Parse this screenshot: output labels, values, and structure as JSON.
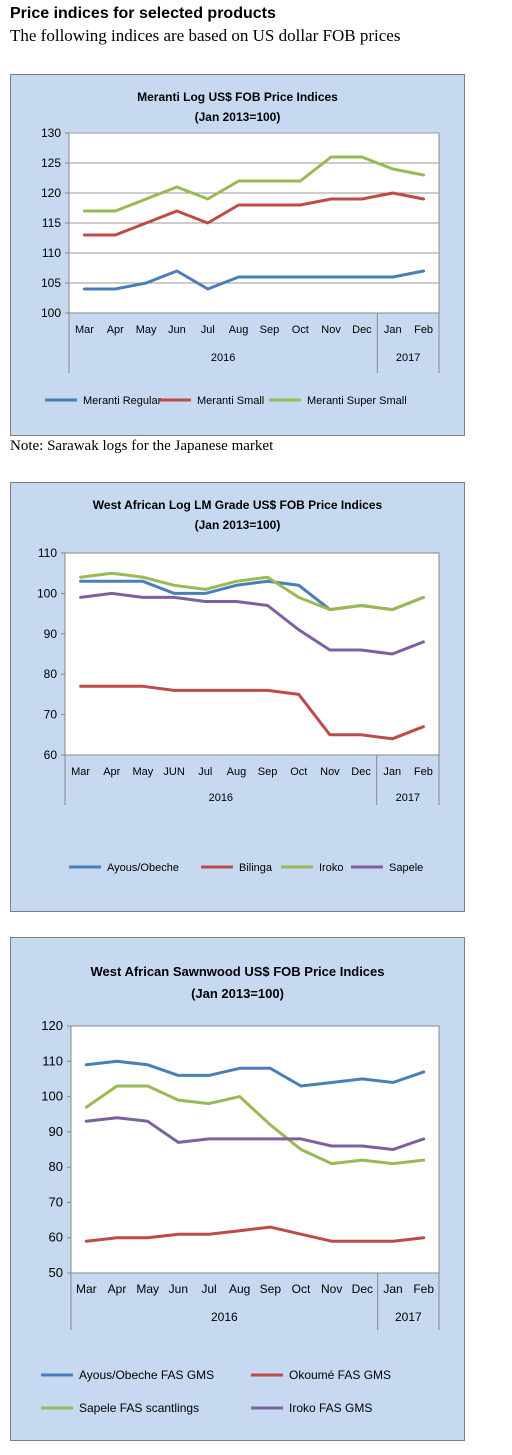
{
  "header": {
    "title": "Price indices for selected products",
    "subtitle": "The following indices are based on US dollar FOB prices"
  },
  "note": "Note: Sarawak logs for the Japanese market",
  "chart_data": [
    {
      "type": "line",
      "title_lines": [
        "Meranti Log US$ FOB Price Indices",
        "(Jan 2013=100)"
      ],
      "categories": [
        "Mar",
        "Apr",
        "May",
        "Jun",
        "Jul",
        "Aug",
        "Sep",
        "Oct",
        "Nov",
        "Dec",
        "Jan",
        "Feb"
      ],
      "groups": [
        {
          "label": "2016",
          "from": 0,
          "to": 9
        },
        {
          "label": "2017",
          "from": 10,
          "to": 11
        }
      ],
      "ylim": [
        100,
        130
      ],
      "yticks": [
        100,
        105,
        110,
        115,
        120,
        125,
        130
      ],
      "grid": true,
      "legend": "bottom",
      "series": [
        {
          "name": "Meranti Regular",
          "color": "#4a7ebb",
          "values": [
            104,
            104,
            105,
            107,
            104,
            106,
            106,
            106,
            106,
            106,
            106,
            107
          ]
        },
        {
          "name": "Meranti Small",
          "color": "#be4b48",
          "values": [
            113,
            113,
            115,
            117,
            115,
            118,
            118,
            118,
            119,
            119,
            120,
            119
          ]
        },
        {
          "name": "Meranti Super Small",
          "color": "#98b954",
          "values": [
            117,
            117,
            119,
            121,
            119,
            122,
            122,
            122,
            126,
            126,
            124,
            123
          ]
        }
      ]
    },
    {
      "type": "line",
      "title_lines": [
        "West African Log LM Grade US$ FOB Price Indices",
        "(Jan 2013=100)"
      ],
      "categories": [
        "Mar",
        "Apr",
        "May",
        "JUN",
        "Jul",
        "Aug",
        "Sep",
        "Oct",
        "Nov",
        "Dec",
        "Jan",
        "Feb"
      ],
      "groups": [
        {
          "label": "2016",
          "from": 0,
          "to": 9
        },
        {
          "label": "2017",
          "from": 10,
          "to": 11
        }
      ],
      "ylim": [
        60,
        110
      ],
      "yticks": [
        60,
        70,
        80,
        90,
        100,
        110
      ],
      "grid": false,
      "legend": "bottom",
      "series": [
        {
          "name": "Ayous/Obeche",
          "color": "#4a7ebb",
          "values": [
            103,
            103,
            103,
            100,
            100,
            102,
            103,
            102,
            96,
            97,
            96,
            99
          ]
        },
        {
          "name": "Bilinga",
          "color": "#be4b48",
          "values": [
            77,
            77,
            77,
            76,
            76,
            76,
            76,
            75,
            65,
            65,
            64,
            67
          ]
        },
        {
          "name": "Iroko",
          "color": "#98b954",
          "values": [
            104,
            105,
            104,
            102,
            101,
            103,
            104,
            99,
            96,
            97,
            96,
            99
          ]
        },
        {
          "name": "Sapele",
          "color": "#7d60a0",
          "values": [
            99,
            100,
            99,
            99,
            98,
            98,
            97,
            91,
            86,
            86,
            85,
            88
          ]
        }
      ]
    },
    {
      "type": "line",
      "title_lines": [
        "West African Sawnwood US$ FOB Price Indices",
        "(Jan 2013=100)"
      ],
      "categories": [
        "Mar",
        "Apr",
        "May",
        "Jun",
        "Jul",
        "Aug",
        "Sep",
        "Oct",
        "Nov",
        "Dec",
        "Jan",
        "Feb"
      ],
      "groups": [
        {
          "label": "2016",
          "from": 0,
          "to": 9
        },
        {
          "label": "2017",
          "from": 10,
          "to": 11
        }
      ],
      "ylim": [
        50,
        120
      ],
      "yticks": [
        50,
        60,
        70,
        80,
        90,
        100,
        110,
        120
      ],
      "grid": false,
      "legend": "bottom",
      "series": [
        {
          "name": "Ayous/Obeche  FAS GMS",
          "color": "#4a7ebb",
          "values": [
            109,
            110,
            109,
            106,
            106,
            108,
            108,
            103,
            104,
            105,
            104,
            107
          ]
        },
        {
          "name": "Okoumé  FAS GMS",
          "color": "#be4b48",
          "values": [
            59,
            60,
            60,
            61,
            61,
            62,
            63,
            61,
            59,
            59,
            59,
            60
          ]
        },
        {
          "name": "Sapele FAS scantlings",
          "color": "#98b954",
          "values": [
            97,
            103,
            103,
            99,
            98,
            100,
            92,
            85,
            81,
            82,
            81,
            82
          ]
        },
        {
          "name": "Iroko FAS GMS",
          "color": "#7d60a0",
          "values": [
            93,
            94,
            93,
            87,
            88,
            88,
            88,
            88,
            86,
            86,
            85,
            88
          ]
        }
      ]
    }
  ]
}
